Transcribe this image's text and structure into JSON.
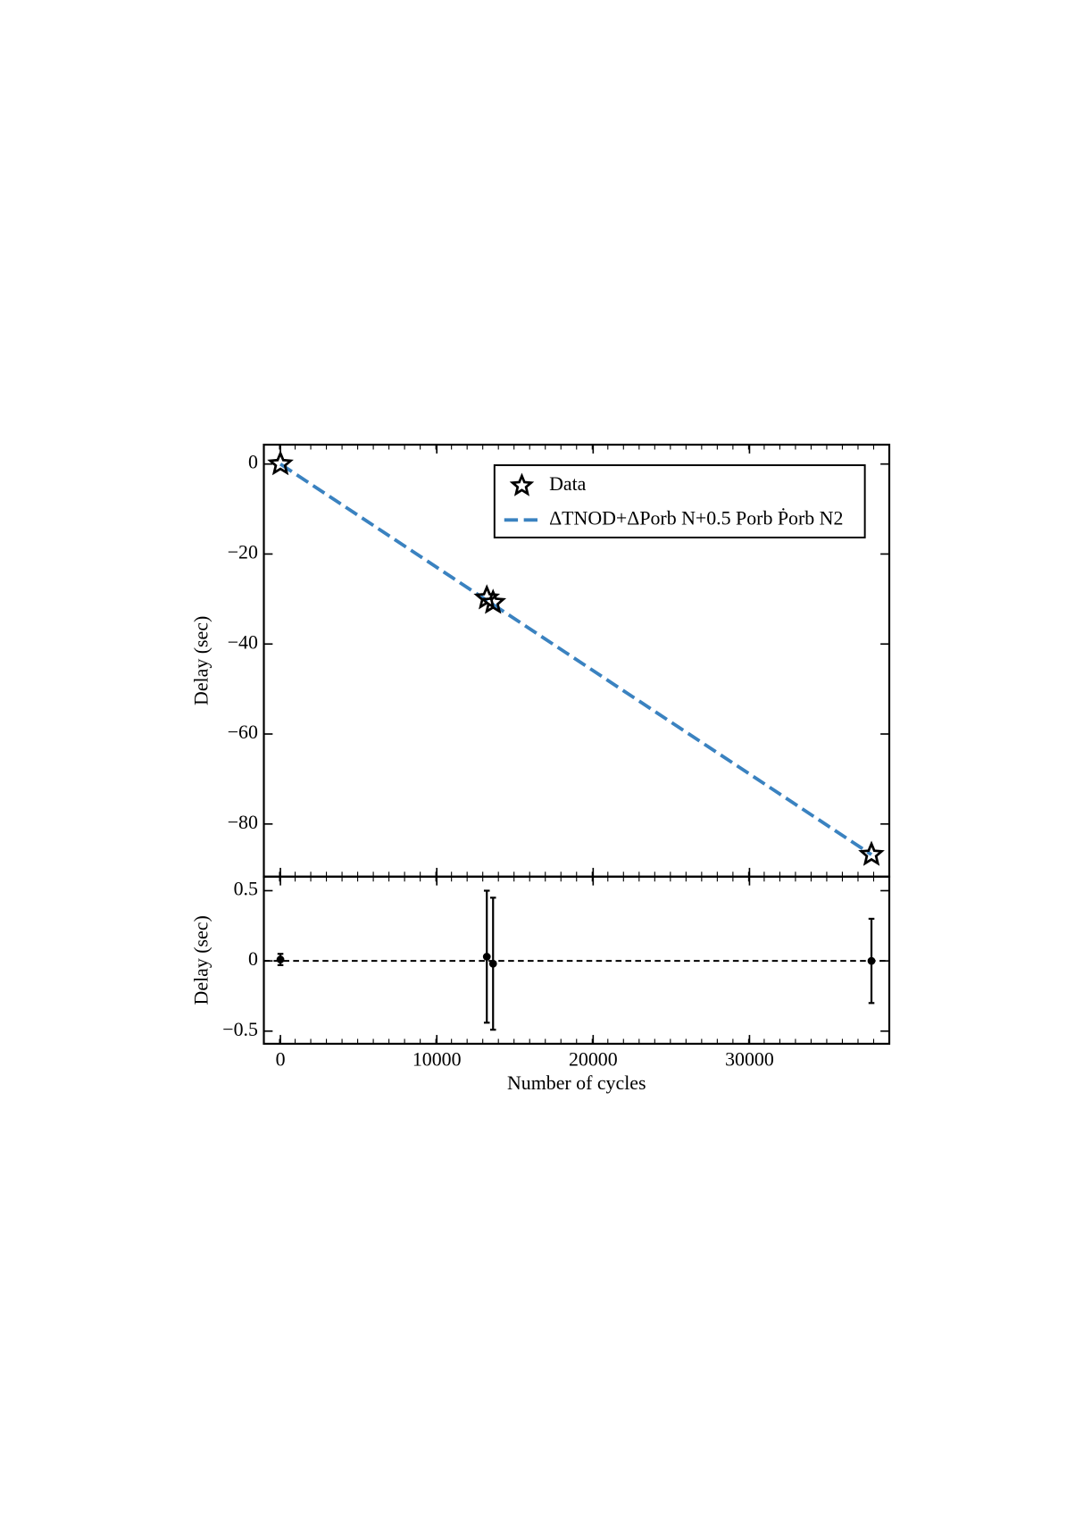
{
  "chart_data": [
    {
      "type": "scatter",
      "xlim": [
        -1060,
        38940
      ],
      "ylim": [
        -91.7,
        4.3
      ],
      "yticks": [
        0,
        {
          "value": -20,
          "label": "−20"
        },
        {
          "value": -40,
          "label": "−40"
        },
        {
          "value": -60,
          "label": "−60"
        },
        {
          "value": -80,
          "label": "−80"
        }
      ],
      "xticks": [
        0,
        10000,
        20000,
        30000
      ],
      "y_label": "Delay (sec)",
      "legend": "upper right",
      "series": [
        {
          "name": "Data",
          "marker": "star",
          "color": "#000000",
          "x": [
            0,
            13200,
            13600,
            37800
          ],
          "values": [
            0,
            -29.8,
            -30.8,
            -86.8
          ]
        },
        {
          "name": "ΔTNOD+ΔPorb N+0.5 Porb Ṗorb N2",
          "marker": "dashed-line",
          "color": "#3a82c0",
          "x": [
            0,
            37800
          ],
          "values": [
            0,
            -86.8
          ]
        }
      ]
    },
    {
      "type": "errorbar",
      "xlim": [
        -1060,
        38940
      ],
      "ylim": [
        -0.59,
        0.6
      ],
      "yticks": [
        0.5,
        0,
        {
          "value": -0.5,
          "label": "−0.5"
        }
      ],
      "xticks": [
        0,
        10000,
        20000,
        30000
      ],
      "x_label": "Number of cycles",
      "y_label": "Delay (sec)",
      "hline": 0,
      "series": [
        {
          "color": "#000000",
          "x": [
            0,
            13200,
            13600,
            37800
          ],
          "values": [
            0.01,
            0.03,
            -0.02,
            0.0
          ],
          "errors": [
            0.04,
            0.47,
            0.47,
            0.3
          ]
        }
      ]
    }
  ]
}
